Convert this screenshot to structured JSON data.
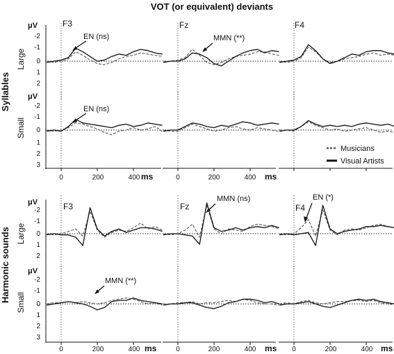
{
  "title": "VOT (or equivalent) deviants",
  "unit_label": "μV",
  "time_label": "ms",
  "group_labels": [
    "Syllables",
    "Harmonic sounds"
  ],
  "row_labels": [
    "Large",
    "Small"
  ],
  "legend": {
    "musicians": "Musicians",
    "visual_artists": "Visual Artists"
  },
  "colors": {
    "musicians": "#555555",
    "visual_artists": "#111111"
  },
  "chart_data": {
    "type": "line",
    "title": "VOT (or equivalent) deviants",
    "xlabel": "ms",
    "ylabel": "μV",
    "x_ticks": [
      0,
      200,
      400
    ],
    "x_tick_labels": [
      "0",
      "200",
      "400"
    ],
    "y_tick_labels": [
      "-2",
      "-1",
      "0",
      "1",
      "2",
      "3"
    ],
    "xlim": [
      -100,
      600
    ],
    "ylim": [
      -2.5,
      3
    ],
    "y_inverted": true,
    "electrodes": [
      "F3",
      "Fz",
      "F4"
    ],
    "series_styles": {
      "Musicians": "dashed gray",
      "Visual Artists": "solid black"
    },
    "time_points": [
      -80,
      -40,
      0,
      40,
      80,
      120,
      160,
      200,
      240,
      280,
      320,
      360,
      400,
      440,
      480,
      520,
      560
    ],
    "panels": [
      {
        "group": "Syllables",
        "size": "Large",
        "electrode": "F3",
        "annotation": "EN (ns)",
        "series": [
          {
            "name": "Musicians",
            "values": [
              0.0,
              0.1,
              0.0,
              -0.2,
              -0.8,
              -0.5,
              -0.1,
              0.2,
              0.3,
              0.1,
              -0.2,
              -0.4,
              -0.5,
              -0.7,
              -0.6,
              -0.5,
              -0.4
            ]
          },
          {
            "name": "Visual Artists",
            "values": [
              0.1,
              0.0,
              -0.1,
              -0.3,
              -1.1,
              -0.8,
              -0.4,
              0.0,
              -0.1,
              -0.4,
              -0.6,
              -0.5,
              -0.8,
              -1.0,
              -0.9,
              -0.7,
              -0.6
            ]
          }
        ]
      },
      {
        "group": "Syllables",
        "size": "Large",
        "electrode": "Fz",
        "annotation": "MMN (**)",
        "series": [
          {
            "name": "Musicians",
            "values": [
              0.0,
              0.0,
              -0.1,
              -0.3,
              -1.0,
              -0.5,
              0.1,
              0.3,
              0.1,
              -0.2,
              -0.4,
              -0.5,
              -0.6,
              -0.8,
              -0.8,
              -0.6,
              -0.5
            ]
          },
          {
            "name": "Visual Artists",
            "values": [
              0.1,
              0.0,
              0.0,
              -0.2,
              -0.7,
              -0.6,
              -0.3,
              0.2,
              0.4,
              0.0,
              -0.4,
              -0.7,
              -0.9,
              -1.0,
              -0.7,
              -0.9,
              -0.8
            ]
          }
        ]
      },
      {
        "group": "Syllables",
        "size": "Large",
        "electrode": "F4",
        "annotation": "",
        "series": [
          {
            "name": "Musicians",
            "values": [
              0.0,
              0.1,
              0.0,
              -0.3,
              -1.2,
              -0.8,
              -0.2,
              0.1,
              0.0,
              -0.2,
              -0.3,
              -0.4,
              -0.6,
              -0.7,
              -0.5,
              -0.6,
              -0.5
            ]
          },
          {
            "name": "Visual Artists",
            "values": [
              0.1,
              0.0,
              -0.1,
              -0.4,
              -1.4,
              -0.9,
              -0.2,
              0.2,
              0.0,
              -0.3,
              -0.6,
              -0.5,
              -0.8,
              -0.9,
              -0.9,
              -0.7,
              -0.6
            ]
          }
        ]
      },
      {
        "group": "Syllables",
        "size": "Small",
        "electrode": "F3",
        "annotation": "EN (ns)",
        "series": [
          {
            "name": "Musicians",
            "values": [
              0.0,
              0.1,
              0.0,
              -0.2,
              -0.6,
              -0.5,
              -0.3,
              -0.1,
              0.2,
              0.4,
              0.1,
              0.0,
              -0.2,
              0.0,
              -0.1,
              -0.3,
              0.1
            ]
          },
          {
            "name": "Visual Artists",
            "values": [
              0.1,
              0.0,
              0.1,
              -0.3,
              -0.9,
              -0.6,
              -0.5,
              -0.4,
              -0.3,
              -0.2,
              -0.4,
              -0.5,
              -0.3,
              -0.4,
              -0.6,
              -0.5,
              -0.4
            ]
          }
        ]
      },
      {
        "group": "Syllables",
        "size": "Small",
        "electrode": "Fz",
        "annotation": "",
        "series": [
          {
            "name": "Musicians",
            "values": [
              0.0,
              0.1,
              0.1,
              -0.2,
              -0.5,
              -0.3,
              -0.1,
              0.1,
              0.0,
              -0.2,
              -0.3,
              -0.1,
              0.0,
              -0.2,
              -0.1,
              0.0,
              0.1
            ]
          },
          {
            "name": "Visual Artists",
            "values": [
              0.1,
              0.0,
              0.0,
              -0.3,
              -0.6,
              -0.5,
              -0.3,
              -0.2,
              -0.4,
              -0.3,
              -0.5,
              -0.7,
              -0.6,
              -0.4,
              -0.5,
              -0.6,
              -0.5
            ]
          }
        ]
      },
      {
        "group": "Syllables",
        "size": "Small",
        "electrode": "F4",
        "annotation": "",
        "series": [
          {
            "name": "Musicians",
            "values": [
              0.0,
              0.0,
              0.1,
              -0.3,
              -0.7,
              -0.4,
              -0.2,
              0.0,
              -0.1,
              0.1,
              0.0,
              -0.1,
              -0.2,
              0.0,
              0.2,
              0.1,
              0.2
            ]
          },
          {
            "name": "Visual Artists",
            "values": [
              0.1,
              0.0,
              0.0,
              -0.3,
              -0.8,
              -0.5,
              -0.3,
              -0.4,
              -0.3,
              -0.4,
              -0.3,
              -0.5,
              -0.6,
              -0.5,
              -0.4,
              -0.5,
              -0.3
            ]
          }
        ]
      },
      {
        "group": "Harmonic sounds",
        "size": "Large",
        "electrode": "F3",
        "annotation": "",
        "series": [
          {
            "name": "Musicians",
            "values": [
              0.0,
              0.1,
              0.0,
              -0.2,
              -0.4,
              0.2,
              -1.9,
              -0.3,
              0.3,
              -0.1,
              -0.3,
              -0.2,
              -0.5,
              -0.9,
              -0.4,
              -0.6,
              -0.3
            ]
          },
          {
            "name": "Visual Artists",
            "values": [
              0.1,
              0.0,
              0.1,
              0.1,
              0.3,
              1.0,
              -2.2,
              -0.4,
              0.2,
              -0.2,
              -0.4,
              -0.1,
              -0.3,
              -0.5,
              -0.5,
              -0.4,
              -0.2
            ]
          }
        ]
      },
      {
        "group": "Harmonic sounds",
        "size": "Large",
        "electrode": "Fz",
        "annotation": "MMN (ns)",
        "series": [
          {
            "name": "Musicians",
            "values": [
              0.0,
              0.1,
              0.0,
              -0.3,
              -0.8,
              0.3,
              -2.4,
              -0.4,
              0.0,
              -0.4,
              -0.3,
              -0.2,
              -0.6,
              -0.8,
              -0.7,
              -0.6,
              -0.4
            ]
          },
          {
            "name": "Visual Artists",
            "values": [
              0.1,
              0.0,
              0.0,
              0.1,
              0.2,
              0.9,
              -2.6,
              -0.5,
              -0.2,
              -0.3,
              -0.5,
              -0.3,
              -0.5,
              -0.6,
              -0.5,
              -0.7,
              -0.5
            ]
          }
        ]
      },
      {
        "group": "Harmonic sounds",
        "size": "Large",
        "electrode": "F4",
        "annotation": "EN (*)",
        "series": [
          {
            "name": "Musicians",
            "values": [
              0.0,
              0.1,
              0.0,
              -0.5,
              -1.2,
              0.2,
              -2.0,
              -0.3,
              0.1,
              -0.3,
              -0.4,
              -0.3,
              -0.5,
              -0.7,
              -0.8,
              -0.6,
              -0.5
            ]
          },
          {
            "name": "Visual Artists",
            "values": [
              0.1,
              0.0,
              0.1,
              0.0,
              -0.1,
              1.0,
              -2.4,
              -0.4,
              0.0,
              -0.2,
              -0.3,
              -0.4,
              -0.6,
              -0.6,
              -0.7,
              -0.6,
              -0.5
            ]
          }
        ]
      },
      {
        "group": "Harmonic sounds",
        "size": "Small",
        "electrode": "F3",
        "annotation": "MMN (**)",
        "series": [
          {
            "name": "Musicians",
            "values": [
              0.0,
              -0.1,
              -0.1,
              -0.2,
              -0.1,
              -0.2,
              -0.1,
              0.0,
              -0.1,
              -0.3,
              -0.4,
              -0.5,
              -0.4,
              -0.2,
              0.0,
              -0.1,
              0.1
            ]
          },
          {
            "name": "Visual Artists",
            "values": [
              0.1,
              0.0,
              -0.1,
              -0.2,
              -0.1,
              0.0,
              0.2,
              0.5,
              0.3,
              -0.2,
              -0.3,
              -0.3,
              -0.5,
              -0.3,
              -0.2,
              -0.1,
              0.0
            ]
          }
        ]
      },
      {
        "group": "Harmonic sounds",
        "size": "Small",
        "electrode": "Fz",
        "annotation": "",
        "series": [
          {
            "name": "Musicians",
            "values": [
              0.0,
              0.0,
              -0.1,
              -0.1,
              -0.2,
              0.0,
              -0.1,
              -0.1,
              -0.2,
              -0.3,
              -0.2,
              -0.4,
              -0.3,
              -0.1,
              0.0,
              0.0,
              0.1
            ]
          },
          {
            "name": "Visual Artists",
            "values": [
              0.1,
              0.0,
              0.0,
              -0.1,
              -0.1,
              0.1,
              0.3,
              0.4,
              0.2,
              -0.1,
              -0.2,
              -0.4,
              -0.4,
              -0.3,
              -0.1,
              -0.2,
              0.0
            ]
          }
        ]
      },
      {
        "group": "Harmonic sounds",
        "size": "Small",
        "electrode": "F4",
        "annotation": "",
        "series": [
          {
            "name": "Musicians",
            "values": [
              0.0,
              -0.1,
              0.0,
              -0.2,
              -0.3,
              -0.1,
              0.0,
              -0.1,
              -0.2,
              -0.2,
              -0.3,
              -0.3,
              -0.2,
              -0.3,
              -0.1,
              0.0,
              0.1
            ]
          },
          {
            "name": "Visual Artists",
            "values": [
              0.1,
              0.0,
              0.0,
              -0.1,
              -0.2,
              0.0,
              0.2,
              0.3,
              0.1,
              -0.1,
              -0.3,
              -0.4,
              -0.3,
              -0.4,
              -0.2,
              -0.1,
              0.0
            ]
          }
        ]
      }
    ]
  }
}
